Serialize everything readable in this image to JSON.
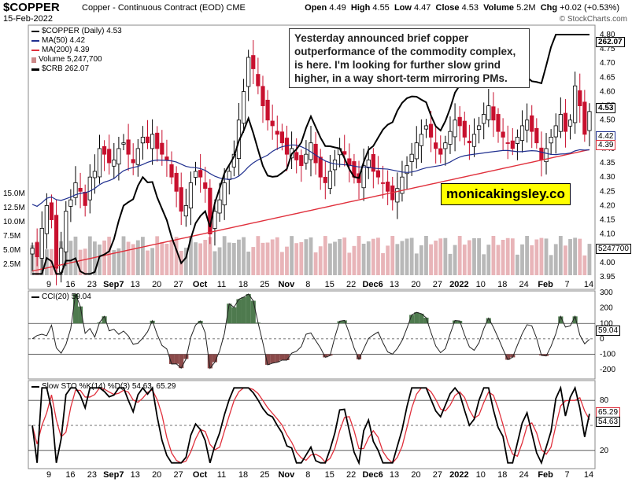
{
  "header": {
    "symbol": "$COPPER",
    "name": "Copper - Continuous Contract (EOD)",
    "exchange": "CME",
    "date": "15-Feb-2022",
    "open": "4.49",
    "high": "4.55",
    "low": "4.47",
    "close": "4.53",
    "volume": "5.2M",
    "chg": "+0.02 (+0.53%)",
    "labels": {
      "open": "Open",
      "high": "High",
      "low": "Low",
      "close": "Close",
      "volume": "Volume",
      "chg": "Chg"
    },
    "brand": "© StockCharts.com"
  },
  "legend": {
    "price": "$COPPER (Daily) 4.53",
    "ma50": "MA(50) 4.42",
    "ma200": "MA(200) 4.39",
    "volume": "Volume 5,247,700",
    "crb": "$CRB 262.07"
  },
  "note": "Yesterday announced brief copper outperformance of the commodity complex, is here. I'm looking for further slow grind higher, in a way short-term mirroring PMs.",
  "watermark": "monicakingsley.co",
  "colors": {
    "up": "#ffffff",
    "down": "#c8102e",
    "ma50": "#1f2f8f",
    "ma200": "#e0303c",
    "crb": "#000000",
    "cci_fill": "#4e7a4e",
    "cci_neg_fill": "#8b4a4a",
    "sto_k": "#000000",
    "sto_d": "#e0303c"
  },
  "price_axis": [
    "4.80",
    "4.75",
    "4.70",
    "4.65",
    "4.60",
    "4.55",
    "4.50",
    "4.45",
    "4.40",
    "4.35",
    "4.30",
    "4.25",
    "4.20",
    "4.15",
    "4.10",
    "4.05",
    "4.00",
    "3.95"
  ],
  "price_tags": {
    "crb": "262.07",
    "close": "4.53",
    "ma50": "4.42",
    "ma200": "4.39",
    "volume": "5247700"
  },
  "volume_axis": [
    "15.0M",
    "12.5M",
    "10.0M",
    "7.5M",
    "5.0M",
    "2.5M"
  ],
  "x_labels": [
    "9",
    "16",
    "23",
    "Sep7",
    "13",
    "20",
    "27",
    "Oct",
    "11",
    "18",
    "25",
    "Nov",
    "8",
    "15",
    "22",
    "Dec6",
    "13",
    "20",
    "27",
    "2022",
    "10",
    "18",
    "24",
    "Feb",
    "7",
    "14"
  ],
  "cci": {
    "title": "CCI(20) 59.04",
    "axis": [
      "300",
      "200",
      "100",
      "0",
      "-100",
      "-200"
    ],
    "tag": "59.04"
  },
  "sto": {
    "title": "Slow STO %K(14) %D(3) 54.63, 65.29",
    "axis": [
      "80",
      "20"
    ],
    "tag_d": "65.29",
    "tag_k": "54.63"
  },
  "chart_data": {
    "type": "candlestick",
    "price_range": [
      3.95,
      4.82
    ],
    "closes": [
      4.05,
      4.02,
      4.12,
      4.2,
      4.15,
      3.98,
      4.05,
      4.18,
      4.22,
      4.28,
      4.25,
      4.2,
      4.3,
      4.32,
      4.4,
      4.38,
      4.35,
      4.36,
      4.4,
      4.42,
      4.38,
      4.35,
      4.4,
      4.44,
      4.42,
      4.45,
      4.4,
      4.38,
      4.36,
      4.3,
      4.25,
      4.18,
      4.2,
      4.28,
      4.32,
      4.3,
      4.26,
      4.1,
      4.18,
      4.22,
      4.28,
      4.32,
      4.38,
      4.5,
      4.6,
      4.72,
      4.68,
      4.62,
      4.55,
      4.5,
      4.48,
      4.45,
      4.42,
      4.38,
      4.4,
      4.36,
      4.34,
      4.38,
      4.42,
      4.35,
      4.3,
      4.28,
      4.32,
      4.36,
      4.4,
      4.38,
      4.34,
      4.3,
      4.28,
      4.34,
      4.36,
      4.32,
      4.3,
      4.28,
      4.25,
      4.22,
      4.26,
      4.3,
      4.34,
      4.38,
      4.42,
      4.45,
      4.48,
      4.44,
      4.4,
      4.38,
      4.42,
      4.46,
      4.5,
      4.48,
      4.44,
      4.42,
      4.45,
      4.48,
      4.52,
      4.55,
      4.5,
      4.46,
      4.44,
      4.42,
      4.4,
      4.44,
      4.48,
      4.5,
      4.46,
      4.42,
      4.36,
      4.4,
      4.44,
      4.48,
      4.52,
      4.46,
      4.5,
      4.62,
      4.55,
      4.45,
      4.53
    ],
    "crb_range": [
      188,
      266
    ]
  }
}
